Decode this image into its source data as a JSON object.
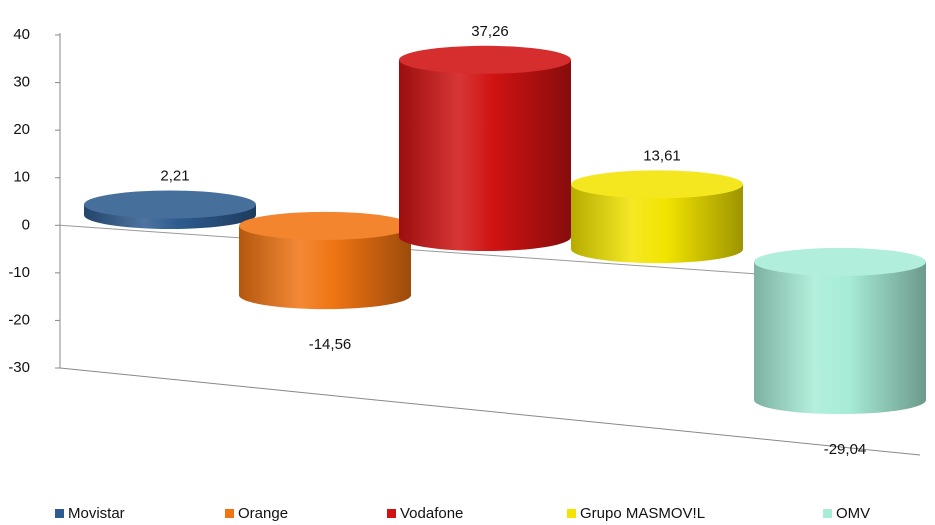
{
  "chart_data": {
    "type": "bar3d",
    "series": [
      {
        "name": "Movistar",
        "color": "#2e5b8f",
        "values": [
          2.21
        ],
        "value_labels": [
          "2,21"
        ]
      },
      {
        "name": "Orange",
        "color": "#f07412",
        "values": [
          -14.56
        ],
        "value_labels": [
          "-14,56"
        ]
      },
      {
        "name": "Vodafone",
        "color": "#d01212",
        "values": [
          37.26
        ],
        "value_labels": [
          "37,26"
        ]
      },
      {
        "name": "Grupo MASMOV!L",
        "color": "#f2e400",
        "values": [
          13.61
        ],
        "value_labels": [
          "13,61"
        ]
      },
      {
        "name": "OMV",
        "color": "#a6ecd6",
        "values": [
          -29.04
        ],
        "value_labels": [
          "-29,04"
        ]
      }
    ],
    "ylim": [
      -30,
      40
    ],
    "yticks": [
      -30,
      -20,
      -10,
      0,
      10,
      20,
      30,
      40
    ],
    "legend": "bottom"
  }
}
